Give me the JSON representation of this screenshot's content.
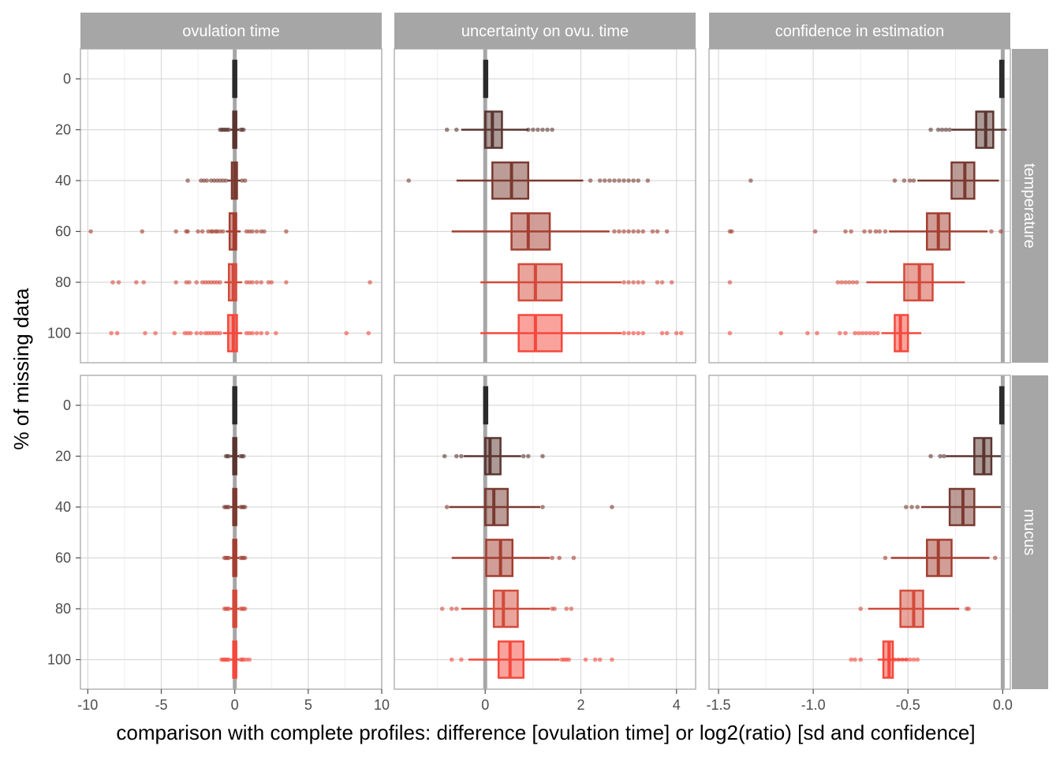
{
  "chart_data": {
    "type": "box",
    "title": "",
    "xlabel": "comparison with complete profiles: difference [ovulation time] or log2(ratio) [sd and confidence]",
    "ylabel": "% of missing data",
    "y_categories": [
      "0",
      "20",
      "40",
      "60",
      "80",
      "100"
    ],
    "facet_columns": [
      {
        "label": "ovulation time",
        "xlim": [
          -10.5,
          10
        ],
        "ticks": [
          -10,
          -5,
          0,
          5,
          10
        ],
        "tick_labels": [
          "-10",
          "-5",
          "0",
          "5",
          "10"
        ]
      },
      {
        "label": "uncertainty on ovu. time",
        "xlim": [
          -1.9,
          4.4
        ],
        "ticks": [
          0,
          2,
          4
        ],
        "tick_labels": [
          "0",
          "2",
          "4"
        ]
      },
      {
        "label": "confidence in estimation",
        "xlim": [
          -1.55,
          0.04
        ],
        "ticks": [
          -1.5,
          -1.0,
          -0.5,
          0.0
        ],
        "tick_labels": [
          "-1.5",
          "-1.0",
          "-0.5",
          "0.0"
        ]
      }
    ],
    "facet_rows": [
      {
        "label": "temperature"
      },
      {
        "label": "mucus"
      }
    ],
    "reference_line": 0,
    "colors": {
      "0": "#2b2b2b",
      "20": "#5a3530",
      "40": "#7a3a30",
      "60": "#a33e30",
      "80": "#d34a3a",
      "100": "#f5483c"
    },
    "panels": [
      {
        "column": 0,
        "row": 0,
        "boxes": [
          {
            "group": "0",
            "q1": -0.05,
            "median": 0,
            "q3": 0.05,
            "whisker_low": -0.05,
            "whisker_high": 0.05,
            "outliers": []
          },
          {
            "group": "20",
            "q1": -0.1,
            "median": 0,
            "q3": 0.1,
            "whisker_low": -0.3,
            "whisker_high": 0.3,
            "outliers": [
              -1.0,
              -0.9,
              -0.8,
              -0.7,
              -0.6,
              -0.5,
              -0.4,
              0.4,
              0.5,
              0.6
            ]
          },
          {
            "group": "40",
            "q1": -0.2,
            "median": 0,
            "q3": 0.15,
            "whisker_low": -0.5,
            "whisker_high": 0.4,
            "outliers": [
              -3.2,
              -2.3,
              -2.1,
              -1.9,
              -1.6,
              -1.4,
              -1.2,
              -1.0,
              -0.8,
              -0.6,
              0.5,
              0.7
            ]
          },
          {
            "group": "60",
            "q1": -0.35,
            "median": -0.05,
            "q3": 0.1,
            "whisker_low": -0.6,
            "whisker_high": 0.4,
            "outliers": [
              -9.8,
              -6.3,
              -4.0,
              -3.3,
              -3.2,
              -2.5,
              -2.2,
              -1.8,
              -1.6,
              -1.5,
              -1.3,
              -1.2,
              -1.0,
              -0.8,
              0.8,
              1.0,
              1.2,
              1.5,
              1.8,
              2.0,
              3.5
            ]
          },
          {
            "group": "80",
            "q1": -0.4,
            "median": -0.1,
            "q3": 0.1,
            "whisker_low": -0.7,
            "whisker_high": 0.5,
            "outliers": [
              -8.3,
              -7.9,
              -6.7,
              -6.2,
              -4.0,
              -3.3,
              -3.1,
              -2.6,
              -2.2,
              -2.0,
              -1.8,
              -1.6,
              -1.4,
              -1.2,
              -1.0,
              0.8,
              1.0,
              1.2,
              1.5,
              1.8,
              2.3,
              2.5,
              3.5,
              9.2
            ]
          },
          {
            "group": "100",
            "q1": -0.45,
            "median": -0.1,
            "q3": 0.15,
            "whisker_low": -0.8,
            "whisker_high": 0.5,
            "outliers": [
              -8.4,
              -8.0,
              -6.1,
              -5.4,
              -4.1,
              -3.4,
              -3.2,
              -3.0,
              -2.6,
              -2.3,
              -2.0,
              -1.8,
              -1.6,
              -1.4,
              -1.2,
              -1.0,
              0.8,
              1.0,
              1.2,
              1.5,
              1.8,
              2.2,
              2.8,
              7.6,
              9.1
            ]
          }
        ]
      },
      {
        "column": 1,
        "row": 0,
        "boxes": [
          {
            "group": "0",
            "q1": 0,
            "median": 0,
            "q3": 0.02,
            "whisker_low": 0,
            "whisker_high": 0.02,
            "outliers": []
          },
          {
            "group": "20",
            "q1": 0,
            "median": 0.15,
            "q3": 0.35,
            "whisker_low": -0.5,
            "whisker_high": 0.9,
            "outliers": [
              -0.8,
              -0.6,
              0.9,
              1.0,
              1.1,
              1.2,
              1.3,
              1.4
            ]
          },
          {
            "group": "40",
            "q1": 0.15,
            "median": 0.55,
            "q3": 0.9,
            "whisker_low": -0.6,
            "whisker_high": 2.05,
            "outliers": [
              -1.6,
              2.2,
              2.4,
              2.5,
              2.6,
              2.7,
              2.8,
              2.9,
              3.0,
              3.1,
              3.2,
              3.4
            ]
          },
          {
            "group": "60",
            "q1": 0.55,
            "median": 0.9,
            "q3": 1.35,
            "whisker_low": -0.7,
            "whisker_high": 2.6,
            "outliers": [
              2.7,
              2.8,
              2.9,
              3.0,
              3.1,
              3.2,
              3.3,
              3.5,
              3.6,
              3.8
            ]
          },
          {
            "group": "80",
            "q1": 0.7,
            "median": 1.05,
            "q3": 1.6,
            "whisker_low": -0.1,
            "whisker_high": 2.85,
            "outliers": [
              2.9,
              3.0,
              3.1,
              3.2,
              3.3,
              3.6,
              3.7,
              3.9
            ]
          },
          {
            "group": "100",
            "q1": 0.7,
            "median": 1.05,
            "q3": 1.6,
            "whisker_low": -0.1,
            "whisker_high": 2.85,
            "outliers": [
              2.9,
              3.0,
              3.1,
              3.2,
              3.3,
              3.7,
              3.8,
              4.0,
              4.1
            ]
          }
        ]
      },
      {
        "column": 2,
        "row": 0,
        "boxes": [
          {
            "group": "0",
            "q1": -0.01,
            "median": 0,
            "q3": 0,
            "whisker_low": -0.01,
            "whisker_high": 0,
            "outliers": []
          },
          {
            "group": "20",
            "q1": -0.14,
            "median": -0.09,
            "q3": -0.05,
            "whisker_low": -0.27,
            "whisker_high": 0.02,
            "outliers": [
              -0.38,
              -0.34,
              -0.32,
              -0.3,
              -0.28
            ]
          },
          {
            "group": "40",
            "q1": -0.27,
            "median": -0.2,
            "q3": -0.15,
            "whisker_low": -0.45,
            "whisker_high": -0.02,
            "outliers": [
              -1.33,
              -0.57,
              -0.52,
              -0.49,
              -0.47
            ]
          },
          {
            "group": "60",
            "q1": -0.4,
            "median": -0.34,
            "q3": -0.28,
            "whisker_low": -0.6,
            "whisker_high": -0.08,
            "outliers": [
              -1.44,
              -1.43,
              -0.99,
              -0.83,
              -0.8,
              -0.73,
              -0.7,
              -0.67,
              -0.65,
              -0.62,
              -0.06,
              -0.01
            ]
          },
          {
            "group": "80",
            "q1": -0.52,
            "median": -0.44,
            "q3": -0.37,
            "whisker_low": -0.72,
            "whisker_high": -0.2,
            "outliers": [
              -1.44,
              -0.87,
              -0.85,
              -0.83,
              -0.81,
              -0.79,
              -0.77
            ]
          },
          {
            "group": "100",
            "q1": -0.57,
            "median": -0.54,
            "q3": -0.5,
            "whisker_low": -0.64,
            "whisker_high": -0.43,
            "outliers": [
              -1.44,
              -1.17,
              -1.03,
              -0.98,
              -0.86,
              -0.83,
              -0.78,
              -0.76,
              -0.74,
              -0.72,
              -0.7,
              -0.68,
              -0.66
            ]
          }
        ]
      },
      {
        "column": 0,
        "row": 1,
        "boxes": [
          {
            "group": "0",
            "q1": -0.05,
            "median": 0,
            "q3": 0.05,
            "whisker_low": -0.05,
            "whisker_high": 0.05,
            "outliers": []
          },
          {
            "group": "20",
            "q1": -0.1,
            "median": 0,
            "q3": 0.1,
            "whisker_low": -0.3,
            "whisker_high": 0.3,
            "outliers": [
              -0.6,
              -0.5,
              -0.4,
              0.4,
              0.5,
              0.6
            ]
          },
          {
            "group": "40",
            "q1": -0.1,
            "median": 0,
            "q3": 0.1,
            "whisker_low": -0.3,
            "whisker_high": 0.3,
            "outliers": [
              -0.7,
              -0.6,
              -0.5,
              -0.4,
              0.4,
              0.5,
              0.6,
              0.7
            ]
          },
          {
            "group": "60",
            "q1": -0.1,
            "median": 0,
            "q3": 0.1,
            "whisker_low": -0.3,
            "whisker_high": 0.3,
            "outliers": [
              -0.7,
              -0.6,
              -0.5,
              -0.4,
              0.4,
              0.5,
              0.6,
              0.7
            ]
          },
          {
            "group": "80",
            "q1": -0.1,
            "median": 0,
            "q3": 0.1,
            "whisker_low": -0.3,
            "whisker_high": 0.3,
            "outliers": [
              -0.7,
              -0.6,
              -0.5,
              -0.4,
              0.4,
              0.5,
              0.6,
              0.7
            ]
          },
          {
            "group": "100",
            "q1": -0.1,
            "median": 0,
            "q3": 0.1,
            "whisker_low": -0.3,
            "whisker_high": 0.3,
            "outliers": [
              -0.9,
              -0.8,
              -0.7,
              -0.6,
              -0.5,
              -0.4,
              0.4,
              0.5,
              0.6,
              0.8,
              1.0
            ]
          }
        ]
      },
      {
        "column": 1,
        "row": 1,
        "boxes": [
          {
            "group": "0",
            "q1": 0,
            "median": 0,
            "q3": 0.02,
            "whisker_low": 0,
            "whisker_high": 0.02,
            "outliers": []
          },
          {
            "group": "20",
            "q1": 0,
            "median": 0.1,
            "q3": 0.32,
            "whisker_low": -0.45,
            "whisker_high": 0.75,
            "outliers": [
              -0.85,
              -0.6,
              -0.5,
              0.8,
              0.9,
              1.2
            ]
          },
          {
            "group": "40",
            "q1": 0,
            "median": 0.18,
            "q3": 0.47,
            "whisker_low": -0.75,
            "whisker_high": 1.15,
            "outliers": [
              -0.8,
              1.2,
              2.65
            ]
          },
          {
            "group": "60",
            "q1": 0.02,
            "median": 0.32,
            "q3": 0.57,
            "whisker_low": -0.7,
            "whisker_high": 1.35,
            "outliers": [
              1.4,
              1.55,
              1.85
            ]
          },
          {
            "group": "80",
            "q1": 0.18,
            "median": 0.38,
            "q3": 0.68,
            "whisker_low": -0.5,
            "whisker_high": 1.35,
            "outliers": [
              -0.9,
              -0.7,
              -0.6,
              1.4,
              1.45,
              1.7,
              1.8
            ]
          },
          {
            "group": "100",
            "q1": 0.28,
            "median": 0.52,
            "q3": 0.8,
            "whisker_low": -0.35,
            "whisker_high": 1.55,
            "outliers": [
              -0.7,
              -0.5,
              1.6,
              1.65,
              1.7,
              1.75,
              2.1,
              2.3,
              2.4,
              2.65
            ]
          }
        ]
      },
      {
        "column": 2,
        "row": 1,
        "boxes": [
          {
            "group": "0",
            "q1": -0.01,
            "median": 0,
            "q3": 0,
            "whisker_low": -0.01,
            "whisker_high": 0,
            "outliers": []
          },
          {
            "group": "20",
            "q1": -0.15,
            "median": -0.1,
            "q3": -0.06,
            "whisker_low": -0.3,
            "whisker_high": -0.01,
            "outliers": [
              -0.38,
              -0.33,
              -0.31
            ]
          },
          {
            "group": "40",
            "q1": -0.28,
            "median": -0.21,
            "q3": -0.15,
            "whisker_low": -0.43,
            "whisker_high": -0.01,
            "outliers": [
              -0.51,
              -0.48,
              -0.45
            ]
          },
          {
            "group": "60",
            "q1": -0.4,
            "median": -0.34,
            "q3": -0.27,
            "whisker_low": -0.59,
            "whisker_high": -0.07,
            "outliers": [
              -0.62,
              -0.04
            ]
          },
          {
            "group": "80",
            "q1": -0.54,
            "median": -0.47,
            "q3": -0.42,
            "whisker_low": -0.71,
            "whisker_high": -0.23,
            "outliers": [
              -0.75,
              -0.19,
              -0.18
            ]
          },
          {
            "group": "100",
            "q1": -0.63,
            "median": -0.6,
            "q3": -0.58,
            "whisker_low": -0.66,
            "whisker_high": -0.5,
            "outliers": [
              -0.8,
              -0.78,
              -0.75,
              -0.6,
              -0.57,
              -0.55,
              -0.53,
              -0.51,
              -0.49,
              -0.47,
              -0.45
            ]
          }
        ]
      }
    ]
  }
}
